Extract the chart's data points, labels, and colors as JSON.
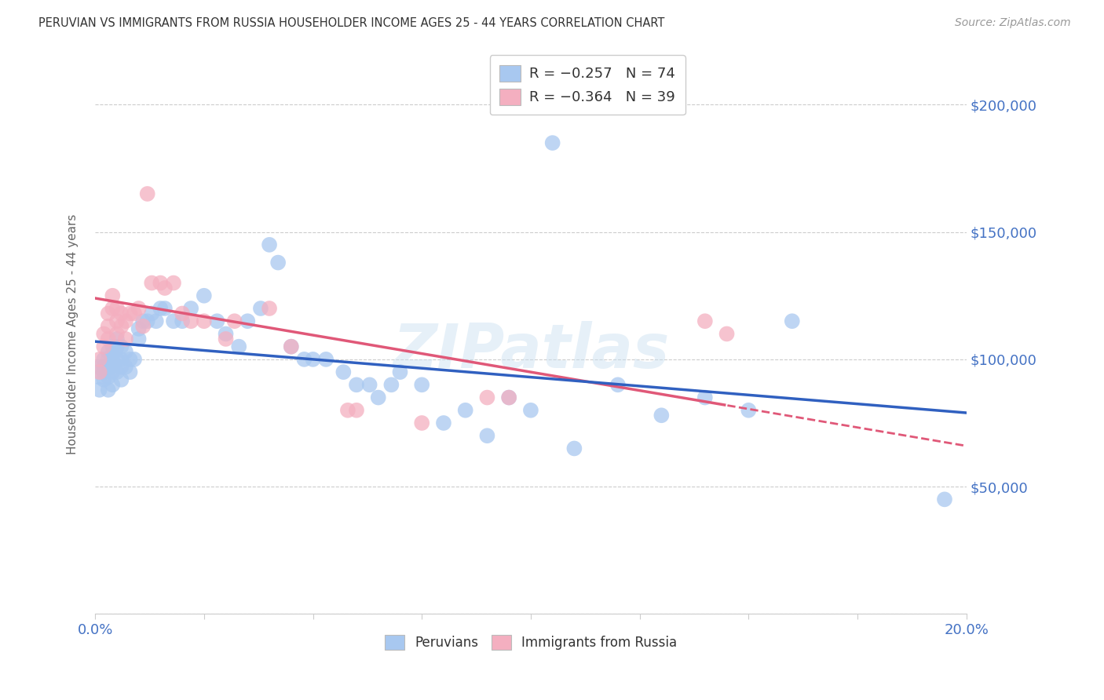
{
  "title": "PERUVIAN VS IMMIGRANTS FROM RUSSIA HOUSEHOLDER INCOME AGES 25 - 44 YEARS CORRELATION CHART",
  "source": "Source: ZipAtlas.com",
  "ylabel": "Householder Income Ages 25 - 44 years",
  "xlim": [
    0.0,
    0.2
  ],
  "ylim": [
    0,
    220000
  ],
  "ytick_positions": [
    0,
    50000,
    100000,
    150000,
    200000
  ],
  "ytick_labels": [
    "",
    "$50,000",
    "$100,000",
    "$150,000",
    "$200,000"
  ],
  "legend_r1": "R = −0.257   N = 74",
  "legend_r2": "R = −0.364   N = 39",
  "legend_label1": "Peruvians",
  "legend_label2": "Immigrants from Russia",
  "blue_color": "#a8c8f0",
  "pink_color": "#f4afc0",
  "blue_line_color": "#3060c0",
  "pink_line_color": "#e05878",
  "watermark": "ZIPatlas",
  "blue_intercept": 107000,
  "blue_slope": -140000,
  "pink_intercept": 124000,
  "pink_slope": -290000,
  "peruvians_x": [
    0.001,
    0.001,
    0.001,
    0.002,
    0.002,
    0.002,
    0.002,
    0.003,
    0.003,
    0.003,
    0.003,
    0.003,
    0.004,
    0.004,
    0.004,
    0.004,
    0.004,
    0.004,
    0.005,
    0.005,
    0.005,
    0.005,
    0.006,
    0.006,
    0.006,
    0.006,
    0.007,
    0.007,
    0.008,
    0.008,
    0.009,
    0.01,
    0.01,
    0.011,
    0.012,
    0.013,
    0.014,
    0.015,
    0.016,
    0.018,
    0.02,
    0.022,
    0.025,
    0.028,
    0.03,
    0.033,
    0.035,
    0.038,
    0.04,
    0.042,
    0.045,
    0.048,
    0.05,
    0.053,
    0.057,
    0.06,
    0.063,
    0.065,
    0.068,
    0.07,
    0.075,
    0.08,
    0.085,
    0.09,
    0.095,
    0.1,
    0.105,
    0.11,
    0.12,
    0.13,
    0.14,
    0.15,
    0.16,
    0.195
  ],
  "peruvians_y": [
    97000,
    93000,
    88000,
    100000,
    97000,
    95000,
    92000,
    103000,
    100000,
    97000,
    93000,
    88000,
    105000,
    102000,
    100000,
    97000,
    95000,
    90000,
    108000,
    105000,
    100000,
    95000,
    105000,
    100000,
    97000,
    92000,
    103000,
    97000,
    100000,
    95000,
    100000,
    112000,
    108000,
    115000,
    115000,
    118000,
    115000,
    120000,
    120000,
    115000,
    115000,
    120000,
    125000,
    115000,
    110000,
    105000,
    115000,
    120000,
    145000,
    138000,
    105000,
    100000,
    100000,
    100000,
    95000,
    90000,
    90000,
    85000,
    90000,
    95000,
    90000,
    75000,
    80000,
    70000,
    85000,
    80000,
    185000,
    65000,
    90000,
    78000,
    85000,
    80000,
    115000,
    45000
  ],
  "russia_x": [
    0.001,
    0.001,
    0.002,
    0.002,
    0.003,
    0.003,
    0.003,
    0.004,
    0.004,
    0.005,
    0.005,
    0.005,
    0.006,
    0.006,
    0.007,
    0.007,
    0.008,
    0.009,
    0.01,
    0.011,
    0.012,
    0.013,
    0.015,
    0.016,
    0.018,
    0.02,
    0.022,
    0.025,
    0.03,
    0.032,
    0.04,
    0.045,
    0.058,
    0.06,
    0.075,
    0.09,
    0.095,
    0.14,
    0.145
  ],
  "russia_y": [
    100000,
    95000,
    110000,
    105000,
    118000,
    113000,
    108000,
    125000,
    120000,
    120000,
    115000,
    110000,
    118000,
    113000,
    115000,
    108000,
    118000,
    118000,
    120000,
    113000,
    165000,
    130000,
    130000,
    128000,
    130000,
    118000,
    115000,
    115000,
    108000,
    115000,
    120000,
    105000,
    80000,
    80000,
    75000,
    85000,
    85000,
    115000,
    110000
  ],
  "background_color": "#ffffff",
  "grid_color": "#cccccc"
}
